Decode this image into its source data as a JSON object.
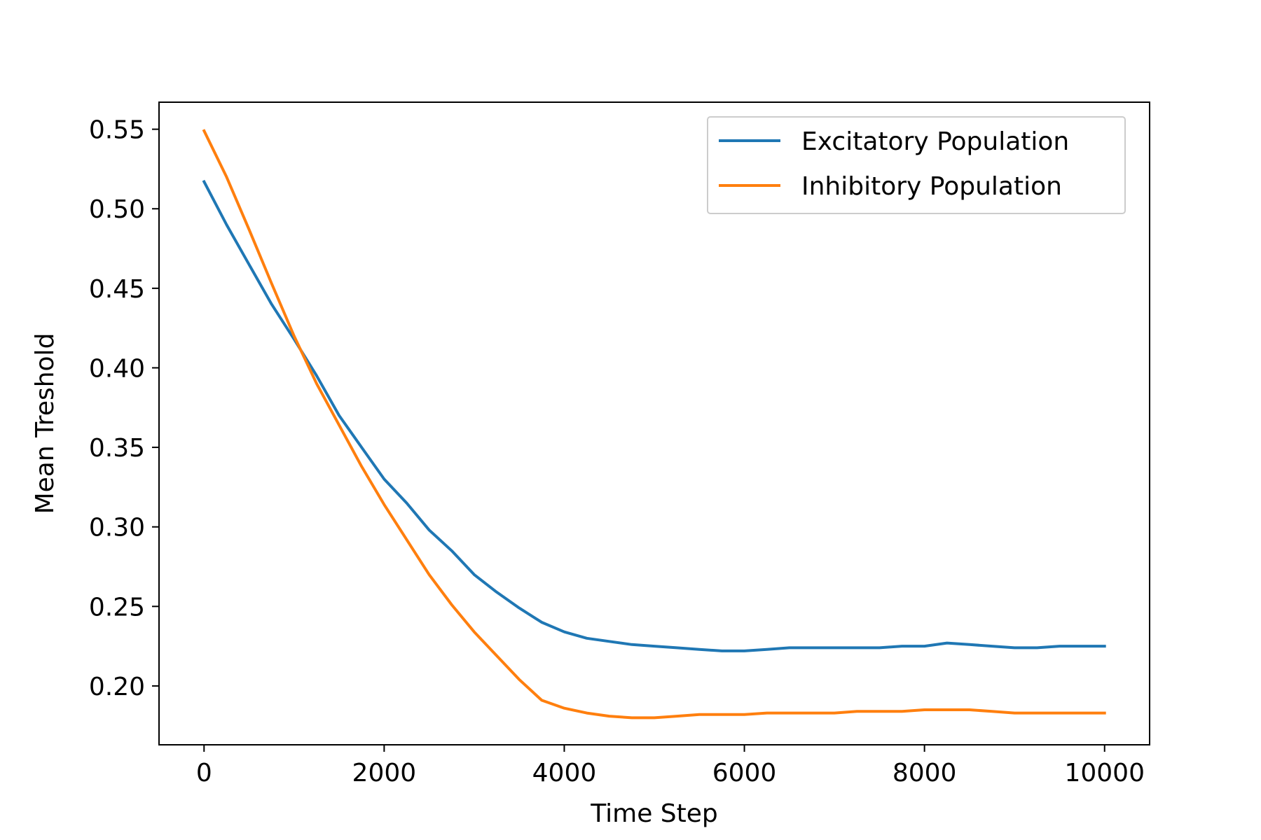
{
  "chart_data": {
    "type": "line",
    "title": "",
    "xlabel": "Time Step",
    "ylabel": "Mean Treshold",
    "xlim": [
      -500,
      10500
    ],
    "ylim": [
      0.163,
      0.567
    ],
    "xticks": [
      0,
      2000,
      4000,
      6000,
      8000,
      10000
    ],
    "xtick_labels": [
      "0",
      "2000",
      "4000",
      "6000",
      "8000",
      "10000"
    ],
    "yticks": [
      0.2,
      0.25,
      0.3,
      0.35,
      0.4,
      0.45,
      0.5,
      0.55
    ],
    "ytick_labels": [
      "0.20",
      "0.25",
      "0.30",
      "0.35",
      "0.40",
      "0.45",
      "0.50",
      "0.55"
    ],
    "grid": false,
    "legend_position": "top-right",
    "series": [
      {
        "name": "Excitatory Population",
        "color": "#1f77b4",
        "x": [
          0,
          250,
          500,
          750,
          1000,
          1250,
          1500,
          1750,
          2000,
          2250,
          2500,
          2750,
          3000,
          3250,
          3500,
          3750,
          4000,
          4250,
          4500,
          4750,
          5000,
          5250,
          5500,
          5750,
          6000,
          6250,
          6500,
          6750,
          7000,
          7250,
          7500,
          7750,
          8000,
          8250,
          8500,
          8750,
          9000,
          9250,
          9500,
          9750,
          10000
        ],
        "values": [
          0.517,
          0.49,
          0.465,
          0.44,
          0.418,
          0.395,
          0.37,
          0.35,
          0.33,
          0.315,
          0.298,
          0.285,
          0.27,
          0.259,
          0.249,
          0.24,
          0.234,
          0.23,
          0.228,
          0.226,
          0.225,
          0.224,
          0.223,
          0.222,
          0.222,
          0.223,
          0.224,
          0.224,
          0.224,
          0.224,
          0.224,
          0.225,
          0.225,
          0.227,
          0.226,
          0.225,
          0.224,
          0.224,
          0.225,
          0.225,
          0.225
        ]
      },
      {
        "name": "Inhibitory Population",
        "color": "#ff7f0e",
        "x": [
          0,
          250,
          500,
          750,
          1000,
          1250,
          1500,
          1750,
          2000,
          2250,
          2500,
          2750,
          3000,
          3250,
          3500,
          3750,
          4000,
          4250,
          4500,
          4750,
          5000,
          5250,
          5500,
          5750,
          6000,
          6250,
          6500,
          6750,
          7000,
          7250,
          7500,
          7750,
          8000,
          8250,
          8500,
          8750,
          9000,
          9250,
          9500,
          9750,
          10000
        ],
        "values": [
          0.549,
          0.52,
          0.487,
          0.453,
          0.42,
          0.39,
          0.364,
          0.338,
          0.314,
          0.292,
          0.27,
          0.251,
          0.234,
          0.219,
          0.204,
          0.191,
          0.186,
          0.183,
          0.181,
          0.18,
          0.18,
          0.181,
          0.182,
          0.182,
          0.182,
          0.183,
          0.183,
          0.183,
          0.183,
          0.184,
          0.184,
          0.184,
          0.185,
          0.185,
          0.185,
          0.184,
          0.183,
          0.183,
          0.183,
          0.183,
          0.183
        ]
      }
    ]
  }
}
